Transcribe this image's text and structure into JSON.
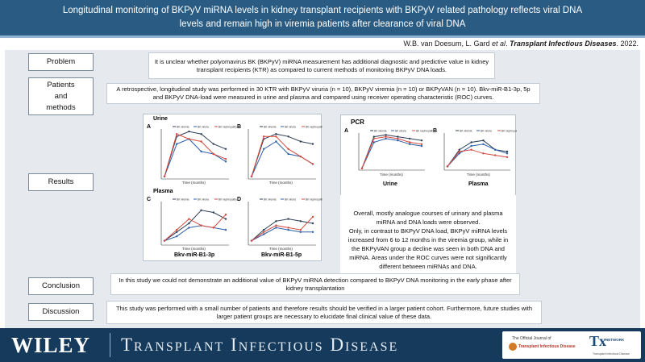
{
  "header": {
    "title_line1": "Longitudinal monitoring of BKPyV miRNA levels in kidney transplant recipients with BKPyV related pathology reflects viral DNA",
    "title_line2": "levels and remain high in viremia patients after clearance of viral DNA"
  },
  "citation": {
    "authors": "W.B. van Doesum, L. Gard ",
    "etal": "et al",
    "sep": ".  ",
    "journal": "Transplant Infectious Diseases",
    "year": ".  2022."
  },
  "sections": {
    "problem": {
      "label": "Problem",
      "text": "It is unclear whether polyomavirus BK (BKPyV) miRNA measurement has additional diagnostic and predictive value in kidney transplant recipients (KTR) as compared to current methods of monitoring BKPyV DNA loads."
    },
    "methods": {
      "label_line1": "Patients",
      "label_line2": "and",
      "label_line3": "methods",
      "text": "A retrospective, longitudinal study was performed in 30 KTR with BKPyV viruria (n = 10), BKPyV viremia (n = 10) or BKPyVAN (n = 10). Bkv-miR-B1-3p, 5p and BKPyV DNA-load were measured in urine and plasma and compared using receiver operating characteristic (ROC) curves."
    },
    "results": {
      "label": "Results",
      "text_1": "Overall, mostly analogue courses of urinary and plasma miRNA and DNA loads were observed.",
      "text_2": "Only, in contrast to BKPyV DNA load, BKPyV miRNA levels increased from 6 to 12 months in the viremia group, while in the BKPyVAN group a decline was seen in both DNA and miRNA. Areas under the ROC curves were not significantly different between miRNAs and DNA."
    },
    "conclusion": {
      "label": "Conclusion",
      "text": "In this study we could not demonstrate an additional value of BKPyV miRNA detection compared to BKPyV DNA monitoring in the early phase after kidney transplantation"
    },
    "discussion": {
      "label": "Discussion",
      "text": "This study was performed with a small number of patients and therefore results should be verified in a larger patient cohort. Furthermore, future studies with larger patient groups are necessary to elucidate final clinical value of these data."
    }
  },
  "figures": {
    "mirna": {
      "urine_label": "Urine",
      "plasma_label": "Plasma",
      "letters": [
        "A",
        "B",
        "C",
        "D"
      ],
      "bottom_left": "Bkv-miR-B1-3p",
      "bottom_right": "Bkv-miR-B1-5p",
      "xlabel": "Time (months)",
      "legend": [
        "BK viremia",
        "BK viruria",
        "BK nephropathy"
      ]
    },
    "pcr": {
      "title": "PCR",
      "letters": [
        "A",
        "B"
      ],
      "bottom_left": "Urine",
      "bottom_right": "Plasma",
      "xlabel": "Time (months)",
      "legend": [
        "BK viremia",
        "BK viruria",
        "BK nephropathy"
      ]
    },
    "colors": {
      "viremia": "#2f3f57",
      "viruria": "#2c5fa8",
      "nephropathy": "#d44a3f"
    }
  },
  "footer": {
    "publisher": "WILEY",
    "journal": "Transplant Infectious Disease",
    "official_line": "The Official Journal of",
    "society": "Transplant Infectious Disease",
    "tx_logo": "Tx",
    "tx_network": "NETWORK",
    "tx_tag": "Transplant Infectious Disease"
  }
}
